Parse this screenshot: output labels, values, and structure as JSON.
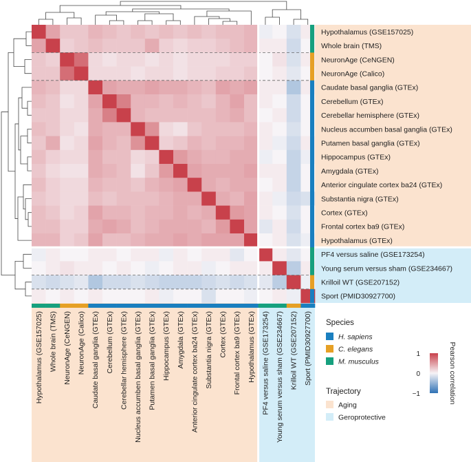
{
  "chart_data": {
    "type": "heatmap",
    "title": "",
    "labels": [
      "Hypothalamus (GSE157025)",
      "Whole brain (TMS)",
      "NeuronAge (CeNGEN)",
      "NeuronAge (Calico)",
      "Caudate basal ganglia (GTEx)",
      "Cerebellum (GTEx)",
      "Cerebellar hemisphere (GTEx)",
      "Nucleus accumben basal ganglia (GTEx)",
      "Putamen basal ganglia (GTEx)",
      "Hippocampus (GTEx)",
      "Amygdala (GTEx)",
      "Anterior cingulate cortex ba24 (GTEx)",
      "Substantia nigra (GTEx)",
      "Cortex (GTEx)",
      "Frontal cortex ba9 (GTEx)",
      "Hypothalamus (GTEx)",
      "PF4 versus saline (GSE173254)",
      "Young serum versus sham (GSE234667)",
      "Krilloil WT (GSE207152)",
      "Sport (PMID30927700)"
    ],
    "species": [
      "M",
      "M",
      "C",
      "C",
      "H",
      "H",
      "H",
      "H",
      "H",
      "H",
      "H",
      "H",
      "H",
      "H",
      "H",
      "H",
      "M",
      "M",
      "C",
      "H"
    ],
    "trajectory": [
      "A",
      "A",
      "A",
      "A",
      "A",
      "A",
      "A",
      "A",
      "A",
      "A",
      "A",
      "A",
      "A",
      "A",
      "A",
      "A",
      "G",
      "G",
      "G",
      "G"
    ],
    "values": [
      [
        1.0,
        0.45,
        0.25,
        0.25,
        0.35,
        0.3,
        0.25,
        0.3,
        0.25,
        0.3,
        0.25,
        0.3,
        0.25,
        0.3,
        0.3,
        0.35,
        -0.05,
        0.0,
        -0.15,
        0.05
      ],
      [
        0.45,
        1.0,
        0.2,
        0.25,
        0.3,
        0.25,
        0.25,
        0.25,
        0.4,
        0.2,
        0.15,
        0.2,
        0.2,
        0.25,
        0.3,
        0.35,
        0.05,
        0.05,
        -0.2,
        0.0
      ],
      [
        0.25,
        0.2,
        1.0,
        0.75,
        0.15,
        0.1,
        0.15,
        0.15,
        0.1,
        0.15,
        0.1,
        0.15,
        0.15,
        0.15,
        0.2,
        0.2,
        0.0,
        0.1,
        -0.15,
        0.05
      ],
      [
        0.25,
        0.25,
        0.75,
        1.0,
        0.15,
        0.15,
        0.15,
        0.1,
        0.15,
        0.15,
        0.1,
        0.15,
        0.15,
        0.2,
        0.2,
        0.25,
        0.0,
        0.05,
        -0.1,
        0.0
      ],
      [
        0.35,
        0.3,
        0.15,
        0.15,
        1.0,
        0.45,
        0.4,
        0.4,
        0.45,
        0.4,
        0.4,
        0.35,
        0.3,
        0.45,
        0.4,
        0.45,
        0.05,
        0.05,
        -0.35,
        0.05
      ],
      [
        0.3,
        0.25,
        0.1,
        0.15,
        0.45,
        1.0,
        0.65,
        0.35,
        0.35,
        0.3,
        0.35,
        0.3,
        0.25,
        0.35,
        0.45,
        0.3,
        0.05,
        0.0,
        -0.2,
        0.0
      ],
      [
        0.25,
        0.25,
        0.15,
        0.15,
        0.4,
        0.65,
        1.0,
        0.35,
        0.3,
        0.3,
        0.3,
        0.3,
        0.3,
        0.35,
        0.4,
        0.3,
        0.0,
        0.05,
        -0.2,
        0.0
      ],
      [
        0.3,
        0.25,
        0.15,
        0.1,
        0.4,
        0.35,
        0.35,
        1.0,
        0.55,
        0.15,
        0.1,
        0.25,
        0.3,
        0.3,
        0.3,
        0.35,
        0.05,
        0.0,
        -0.15,
        0.0
      ],
      [
        0.25,
        0.4,
        0.1,
        0.15,
        0.45,
        0.35,
        0.3,
        0.55,
        1.0,
        0.2,
        0.25,
        0.35,
        0.3,
        0.35,
        0.35,
        0.4,
        0.05,
        -0.05,
        -0.2,
        0.05
      ],
      [
        0.3,
        0.2,
        0.15,
        0.15,
        0.4,
        0.3,
        0.3,
        0.15,
        0.2,
        1.0,
        0.5,
        0.4,
        0.35,
        0.35,
        0.4,
        0.4,
        -0.05,
        0.0,
        -0.25,
        -0.05
      ],
      [
        0.25,
        0.15,
        0.1,
        0.1,
        0.4,
        0.35,
        0.3,
        0.1,
        0.25,
        0.5,
        1.0,
        0.45,
        0.4,
        0.4,
        0.4,
        0.45,
        0.05,
        0.05,
        -0.25,
        0.0
      ],
      [
        0.3,
        0.2,
        0.15,
        0.15,
        0.35,
        0.3,
        0.3,
        0.25,
        0.35,
        0.4,
        0.45,
        1.0,
        0.4,
        0.35,
        0.4,
        0.4,
        0.0,
        0.05,
        -0.25,
        0.0
      ],
      [
        0.25,
        0.2,
        0.15,
        0.15,
        0.3,
        0.25,
        0.3,
        0.3,
        0.3,
        0.35,
        0.4,
        0.4,
        1.0,
        0.4,
        0.35,
        0.45,
        0.05,
        -0.05,
        -0.2,
        -0.15
      ],
      [
        0.3,
        0.25,
        0.15,
        0.2,
        0.45,
        0.35,
        0.35,
        0.3,
        0.35,
        0.35,
        0.4,
        0.35,
        0.4,
        1.0,
        0.5,
        0.45,
        0.05,
        0.0,
        -0.15,
        0.0
      ],
      [
        0.3,
        0.3,
        0.2,
        0.2,
        0.4,
        0.45,
        0.4,
        0.3,
        0.35,
        0.4,
        0.4,
        0.4,
        0.35,
        0.5,
        1.0,
        0.45,
        -0.1,
        0.05,
        -0.2,
        0.0
      ],
      [
        0.35,
        0.35,
        0.2,
        0.25,
        0.45,
        0.3,
        0.3,
        0.35,
        0.4,
        0.4,
        0.45,
        0.4,
        0.45,
        0.45,
        0.45,
        1.0,
        0.0,
        0.05,
        -0.15,
        -0.05
      ],
      [
        -0.05,
        0.05,
        0.0,
        0.0,
        0.05,
        0.05,
        0.0,
        0.05,
        0.05,
        -0.05,
        0.05,
        0.0,
        0.05,
        0.05,
        -0.1,
        0.0,
        1.0,
        0.05,
        -0.1,
        0.0
      ],
      [
        0.0,
        0.05,
        0.1,
        0.05,
        0.05,
        0.0,
        0.05,
        0.0,
        -0.05,
        0.0,
        0.05,
        0.05,
        -0.05,
        0.0,
        0.05,
        0.05,
        0.05,
        1.0,
        -0.3,
        0.05
      ],
      [
        -0.15,
        -0.2,
        -0.15,
        -0.1,
        -0.35,
        -0.2,
        -0.2,
        -0.15,
        -0.2,
        -0.25,
        -0.25,
        -0.25,
        -0.2,
        -0.15,
        -0.2,
        -0.15,
        -0.1,
        -0.3,
        1.0,
        -0.05
      ],
      [
        0.05,
        0.0,
        0.05,
        0.0,
        0.05,
        0.0,
        0.0,
        0.0,
        0.05,
        -0.05,
        0.0,
        0.0,
        -0.15,
        0.0,
        0.0,
        -0.05,
        0.0,
        0.05,
        -0.05,
        1.0
      ]
    ],
    "colorbar": {
      "label": "Pearson correlation",
      "ticks": [
        "1",
        "0",
        "−1"
      ],
      "range": [
        -1,
        1
      ]
    },
    "legend": {
      "species_title": "Species",
      "species": [
        {
          "key": "H",
          "label": "H. sapiens",
          "color": "#1a7fbf"
        },
        {
          "key": "C",
          "label": "C. elegans",
          "color": "#e6a025"
        },
        {
          "key": "M",
          "label": "M. musculus",
          "color": "#16a07e"
        }
      ],
      "trajectory_title": "Trajectory",
      "trajectory": [
        {
          "key": "A",
          "label": "Aging",
          "color": "#fbe3cf"
        },
        {
          "key": "G",
          "label": "Geroprotective",
          "color": "#d3edf8"
        }
      ]
    }
  }
}
